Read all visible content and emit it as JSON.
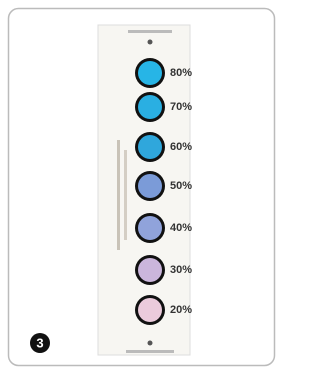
{
  "badge": "3",
  "spots": [
    {
      "label": "80%",
      "color": "#27b5e6"
    },
    {
      "label": "70%",
      "color": "#2aafe2"
    },
    {
      "label": "60%",
      "color": "#2fa7dc"
    },
    {
      "label": "50%",
      "color": "#7b9bd8"
    },
    {
      "label": "40%",
      "color": "#90a3db"
    },
    {
      "label": "30%",
      "color": "#cbb6dc"
    },
    {
      "label": "20%",
      "color": "#ebcbdc"
    }
  ]
}
